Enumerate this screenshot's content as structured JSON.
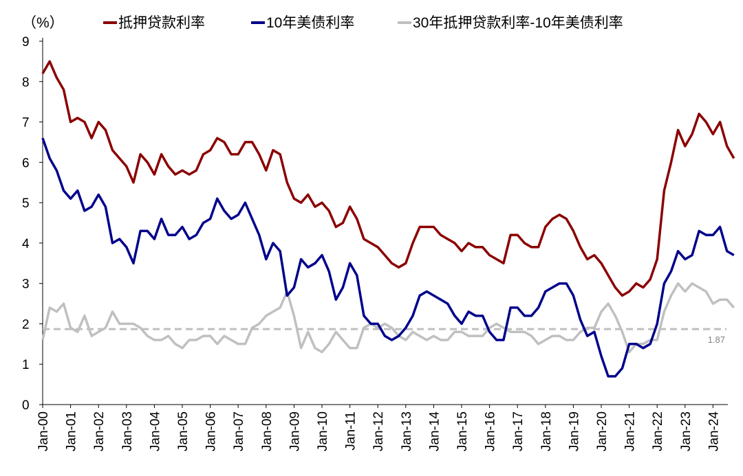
{
  "chart_data": {
    "type": "line",
    "unit_label": "（%）",
    "ylim": [
      0,
      9
    ],
    "yticks": [
      "0",
      "1",
      "2",
      "3",
      "4",
      "5",
      "6",
      "7",
      "8",
      "9"
    ],
    "xlim": [
      2000,
      2024.75
    ],
    "xtick_labels": [
      "Jan-00",
      "Jan-01",
      "Jan-02",
      "Jan-03",
      "Jan-04",
      "Jan-05",
      "Jan-06",
      "Jan-07",
      "Jan-08",
      "Jan-09",
      "Jan-10",
      "Jan-11",
      "Jan-12",
      "Jan-13",
      "Jan-14",
      "Jan-15",
      "Jan-16",
      "Jan-17",
      "Jan-18",
      "Jan-19",
      "Jan-20",
      "Jan-21",
      "Jan-22",
      "Jan-23",
      "Jan-24"
    ],
    "x_start": 2000,
    "x_step": 0.25,
    "legend_position": "top",
    "series": [
      {
        "name": "抵押贷款利率",
        "color": "#8B0000",
        "values": [
          8.2,
          8.5,
          8.1,
          7.8,
          7.0,
          7.1,
          7.0,
          6.6,
          7.0,
          6.8,
          6.3,
          6.1,
          5.9,
          5.5,
          6.2,
          6.0,
          5.7,
          6.2,
          5.9,
          5.7,
          5.8,
          5.7,
          5.8,
          6.2,
          6.3,
          6.6,
          6.5,
          6.2,
          6.2,
          6.5,
          6.5,
          6.2,
          5.8,
          6.3,
          6.2,
          5.5,
          5.1,
          5.0,
          5.2,
          4.9,
          5.0,
          4.8,
          4.4,
          4.5,
          4.9,
          4.6,
          4.1,
          4.0,
          3.9,
          3.7,
          3.5,
          3.4,
          3.5,
          4.0,
          4.4,
          4.4,
          4.4,
          4.2,
          4.1,
          4.0,
          3.8,
          4.0,
          3.9,
          3.9,
          3.7,
          3.6,
          3.5,
          4.2,
          4.2,
          4.0,
          3.9,
          3.9,
          4.4,
          4.6,
          4.7,
          4.6,
          4.3,
          3.9,
          3.6,
          3.7,
          3.5,
          3.2,
          2.9,
          2.7,
          2.8,
          3.0,
          2.9,
          3.1,
          3.6,
          5.3,
          6.0,
          6.8,
          6.4,
          6.7,
          7.2,
          7.0,
          6.7,
          7.0,
          6.4,
          6.1
        ]
      },
      {
        "name": "10年美债利率",
        "color": "#00008B",
        "values": [
          6.6,
          6.1,
          5.8,
          5.3,
          5.1,
          5.3,
          4.8,
          4.9,
          5.2,
          4.9,
          4.0,
          4.1,
          3.9,
          3.5,
          4.3,
          4.3,
          4.1,
          4.6,
          4.2,
          4.2,
          4.4,
          4.1,
          4.2,
          4.5,
          4.6,
          5.1,
          4.8,
          4.6,
          4.7,
          5.0,
          4.6,
          4.2,
          3.6,
          4.0,
          3.8,
          2.7,
          2.9,
          3.6,
          3.4,
          3.5,
          3.7,
          3.3,
          2.6,
          2.9,
          3.5,
          3.2,
          2.2,
          2.0,
          2.0,
          1.7,
          1.6,
          1.7,
          1.9,
          2.2,
          2.7,
          2.8,
          2.7,
          2.6,
          2.5,
          2.2,
          2.0,
          2.3,
          2.2,
          2.2,
          1.8,
          1.6,
          1.6,
          2.4,
          2.4,
          2.2,
          2.2,
          2.4,
          2.8,
          2.9,
          3.0,
          3.0,
          2.7,
          2.1,
          1.7,
          1.8,
          1.2,
          0.7,
          0.7,
          0.9,
          1.5,
          1.5,
          1.4,
          1.5,
          2.0,
          3.0,
          3.3,
          3.8,
          3.6,
          3.7,
          4.3,
          4.2,
          4.2,
          4.4,
          3.8,
          3.7
        ]
      },
      {
        "name": "30年抵押贷款利率-10年美债利率",
        "color": "#C0C0C0",
        "values": [
          1.6,
          2.4,
          2.3,
          2.5,
          1.9,
          1.8,
          2.2,
          1.7,
          1.8,
          1.9,
          2.3,
          2.0,
          2.0,
          2.0,
          1.9,
          1.7,
          1.6,
          1.6,
          1.7,
          1.5,
          1.4,
          1.6,
          1.6,
          1.7,
          1.7,
          1.5,
          1.7,
          1.6,
          1.5,
          1.5,
          1.9,
          2.0,
          2.2,
          2.3,
          2.4,
          2.8,
          2.2,
          1.4,
          1.8,
          1.4,
          1.3,
          1.5,
          1.8,
          1.6,
          1.4,
          1.4,
          1.9,
          2.0,
          1.9,
          2.0,
          1.9,
          1.7,
          1.6,
          1.8,
          1.7,
          1.6,
          1.7,
          1.6,
          1.6,
          1.8,
          1.8,
          1.7,
          1.7,
          1.7,
          1.9,
          2.0,
          1.9,
          1.8,
          1.8,
          1.8,
          1.7,
          1.5,
          1.6,
          1.7,
          1.7,
          1.6,
          1.6,
          1.8,
          1.9,
          1.9,
          2.3,
          2.5,
          2.2,
          1.8,
          1.3,
          1.5,
          1.5,
          1.6,
          1.6,
          2.3,
          2.7,
          3.0,
          2.8,
          3.0,
          2.9,
          2.8,
          2.5,
          2.6,
          2.6,
          2.4
        ]
      }
    ],
    "reference_line": {
      "value": 1.87,
      "label": "1.87",
      "color": "#BFBFBF",
      "style": "dashed"
    }
  }
}
